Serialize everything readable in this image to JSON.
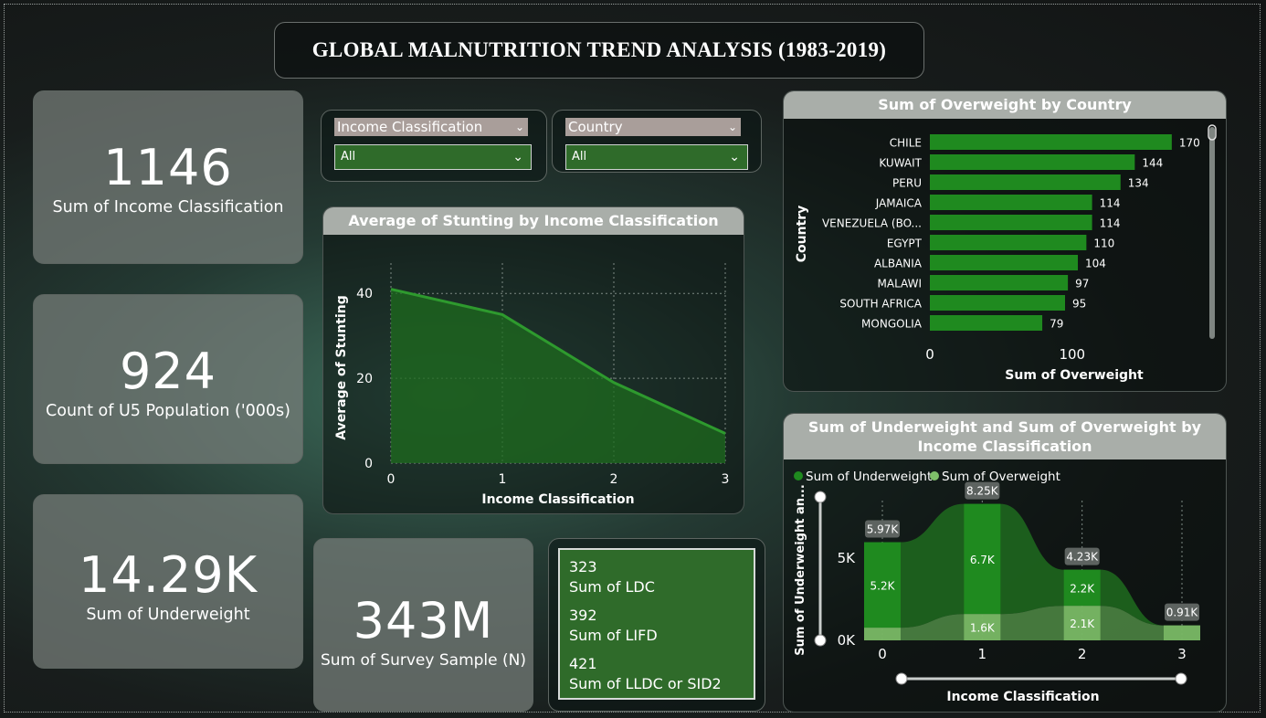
{
  "title": "GLOBAL MALNUTRITION TREND ANALYSIS (1983-2019)",
  "cards": [
    {
      "value": "1146",
      "label": "Sum of Income Classification"
    },
    {
      "value": "924",
      "label": "Count of U5 Population ('000s)"
    },
    {
      "value": "14.29K",
      "label": "Sum of Underweight"
    },
    {
      "value": "343M",
      "label": "Sum of Survey Sample (N)"
    }
  ],
  "slicers": [
    {
      "header": "Income Classification",
      "value": "All"
    },
    {
      "header": "Country",
      "value": "All"
    }
  ],
  "multirow": [
    {
      "value": "323",
      "label": "Sum of LDC"
    },
    {
      "value": "392",
      "label": "Sum of LIFD"
    },
    {
      "value": "421",
      "label": "Sum of LLDC or SID2"
    }
  ],
  "colors": {
    "bar_green": "#1f8a1f",
    "area_green": "#1e6b1e",
    "light_green": "#7fbf6a",
    "header_gray": "#a9aea9"
  },
  "icons": [
    "chevron-down-icon",
    "slider-handle-icon"
  ],
  "chart_data": [
    {
      "type": "area",
      "title": "Average of Stunting by Income Classification",
      "xlabel": "Income Classification",
      "ylabel": "Average of Stunting",
      "x": [
        0,
        1,
        2,
        3
      ],
      "values": [
        41,
        35,
        19,
        7
      ],
      "xticks": [
        "0",
        "1",
        "2",
        "3"
      ],
      "yticks": [
        "0",
        "20",
        "40"
      ],
      "ylim": [
        0,
        45
      ],
      "grid": true
    },
    {
      "type": "bar",
      "orientation": "horizontal",
      "title": "Sum of Overweight by Country",
      "xlabel": "Sum of Overweight",
      "ylabel": "Country",
      "categories": [
        "CHILE",
        "KUWAIT",
        "PERU",
        "JAMAICA",
        "VENEZUELA (BO...",
        "EGYPT",
        "ALBANIA",
        "MALAWI",
        "SOUTH AFRICA",
        "MONGOLIA"
      ],
      "values": [
        170,
        144,
        134,
        114,
        114,
        110,
        104,
        97,
        95,
        79
      ],
      "xticks": [
        "0",
        "100"
      ],
      "xlim": [
        0,
        190
      ]
    },
    {
      "type": "area",
      "title": "Sum of Underweight and Sum of Overweight by Income Classification",
      "xlabel": "Income Classification",
      "ylabel": "Sum of Underweight an...",
      "x": [
        0,
        1,
        2,
        3
      ],
      "xticks": [
        "0",
        "1",
        "2",
        "3"
      ],
      "yticks": [
        "0K",
        "5K"
      ],
      "ylim": [
        0,
        9500
      ],
      "legend": "top-left",
      "totals": [
        "5.97K",
        "8.25K",
        "4.23K",
        "0.91K"
      ],
      "series": [
        {
          "name": "Sum of Underweight",
          "values": [
            5200,
            6700,
            2200,
            0
          ],
          "labels": [
            "5.2K",
            "6.7K",
            "2.2K",
            ""
          ]
        },
        {
          "name": "Sum of Overweight",
          "values": [
            770,
            1600,
            2100,
            910
          ],
          "labels": [
            "",
            "1.6K",
            "2.1K",
            ""
          ]
        }
      ]
    }
  ]
}
